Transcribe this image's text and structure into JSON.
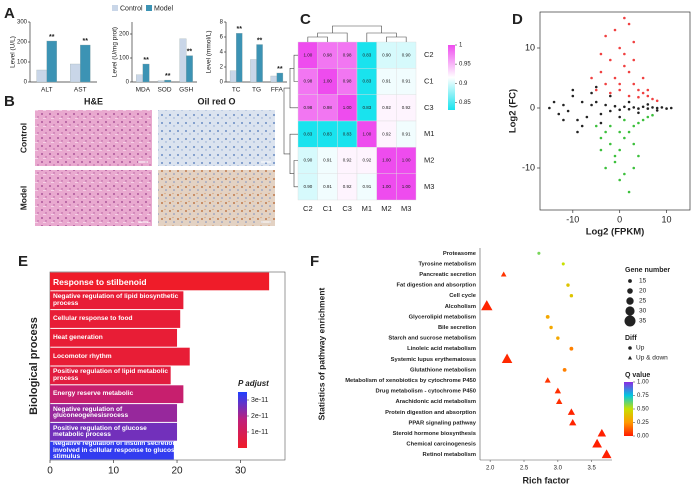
{
  "chart_data": [
    {
      "panel": "A",
      "type": "bar",
      "ylabel": "Level (U/L)",
      "categories": [
        "ALT",
        "AST"
      ],
      "series": [
        {
          "name": "Control",
          "color": "#c9d6e8",
          "values": [
            60,
            90
          ]
        },
        {
          "name": "Model",
          "color": "#3c93b4",
          "values": [
            205,
            185
          ]
        }
      ],
      "significance": [
        "**",
        "**"
      ],
      "ylim": [
        0,
        300
      ],
      "yticks": [
        0,
        100,
        200,
        300
      ]
    },
    {
      "type": "bar",
      "ylabel": "Level (U/mg prot)",
      "categories": [
        "MDA",
        "SOD",
        "GSH"
      ],
      "series": [
        {
          "color": "#c9d6e8",
          "values": [
            30,
            5,
            180
          ]
        },
        {
          "color": "#3c93b4",
          "values": [
            75,
            8,
            110
          ]
        }
      ],
      "significance": [
        "**",
        "**",
        "**"
      ],
      "ylim": [
        0,
        250
      ],
      "yticks": [
        0,
        100,
        200
      ]
    },
    {
      "type": "bar",
      "ylabel": "Level (mmol/L)",
      "categories": [
        "TC",
        "TG",
        "FFA"
      ],
      "series": [
        {
          "color": "#c9d6e8",
          "values": [
            1.5,
            3,
            0.8
          ]
        },
        {
          "color": "#3c93b4",
          "values": [
            6.5,
            5,
            1.2
          ]
        }
      ],
      "significance": [
        "**",
        "**",
        "**"
      ],
      "ylim": [
        0,
        8
      ],
      "yticks": [
        0,
        2,
        4,
        6,
        8
      ]
    },
    {
      "panel": "C",
      "type": "heatmap",
      "xcategories": [
        "C2",
        "C1",
        "C3",
        "M1",
        "M2",
        "M3"
      ],
      "ycategories": [
        "C2",
        "C1",
        "C3",
        "M1",
        "M2",
        "M3"
      ],
      "values": [
        [
          1,
          0.98,
          0.98,
          0.83,
          0.9,
          0.9
        ],
        [
          0.98,
          1,
          0.98,
          0.83,
          0.91,
          0.91
        ],
        [
          0.98,
          0.98,
          1,
          0.83,
          0.92,
          0.92
        ],
        [
          0.83,
          0.83,
          0.83,
          1,
          0.92,
          0.91
        ],
        [
          0.9,
          0.91,
          0.92,
          0.92,
          1,
          1
        ],
        [
          0.9,
          0.91,
          0.92,
          0.91,
          1,
          1
        ]
      ],
      "value_labels": [
        [
          "1.00",
          "0.98",
          "0.98",
          "0.83",
          "0.90",
          "0.90"
        ],
        [
          "0.98",
          "1.00",
          "0.98",
          "0.83",
          "0.91",
          "0.91"
        ],
        [
          "0.98",
          "0.98",
          "1.00",
          "0.83",
          "0.92",
          "0.92"
        ],
        [
          "0.83",
          "0.83",
          "0.83",
          "1.00",
          "0.92",
          "0.91"
        ],
        [
          "0.90",
          "0.91",
          "0.92",
          "0.92",
          "1.00",
          "1.00"
        ],
        [
          "0.90",
          "0.91",
          "0.92",
          "0.91",
          "1.00",
          "1.00"
        ]
      ],
      "zlim": [
        0.83,
        1
      ],
      "zticks": [
        1,
        0.95,
        0.9,
        0.85
      ],
      "colors": [
        "#19e3ee",
        "#ffffff",
        "#ee4cee"
      ]
    },
    {
      "panel": "D",
      "type": "scatter",
      "xlabel": "Log2 (FPKM)",
      "ylabel": "Log2 (FC)",
      "xlim": [
        -17,
        15
      ],
      "ylim": [
        -17,
        16
      ],
      "xticks": [
        -10,
        0,
        10
      ],
      "yticks": [
        -10,
        0,
        10
      ],
      "series": [
        {
          "color": "#222222",
          "x": [
            -15,
            -14,
            -13,
            -12,
            -11,
            -10,
            -9,
            -8,
            -7,
            -6,
            -5,
            -4,
            -3,
            -2,
            -1,
            0,
            1,
            2,
            3,
            4,
            5,
            6,
            7,
            8,
            9,
            10,
            11,
            -12,
            -10,
            -8,
            -6,
            -4,
            -2,
            0,
            2,
            4,
            6,
            8,
            -9,
            -5
          ],
          "values": [
            0,
            1,
            -1,
            0.5,
            -0.5,
            2,
            -2,
            1,
            -1.5,
            0.5,
            1,
            -1,
            0.5,
            -0.5,
            0.3,
            -0.3,
            0.2,
            -0.2,
            0.1,
            -0.1,
            0.2,
            -0.1,
            0.1,
            0,
            0.1,
            -0.1,
            0,
            -2,
            3,
            -3,
            2.5,
            -2.5,
            2,
            -1.5,
            1,
            -0.8,
            0.6,
            -0.4,
            -4,
            3.5
          ]
        },
        {
          "color": "#f04040",
          "x": [
            -6,
            -5,
            -4,
            -3,
            -2,
            -1,
            0,
            1,
            2,
            3,
            4,
            5,
            6,
            7,
            8,
            -3,
            -1,
            1,
            3,
            5,
            0,
            2,
            -2,
            4,
            1,
            3,
            6,
            -4,
            2,
            0
          ],
          "values": [
            5,
            3,
            6,
            4,
            8,
            5,
            10,
            7,
            6,
            4,
            3,
            2.5,
            2,
            1.5,
            1.2,
            12,
            13,
            9,
            11,
            5,
            3,
            2,
            2.5,
            1.8,
            15,
            8,
            3,
            9,
            14,
            4
          ]
        },
        {
          "color": "#3cc03c",
          "x": [
            -5,
            -4,
            -3,
            -2,
            -1,
            0,
            1,
            2,
            3,
            4,
            5,
            6,
            7,
            -3,
            -1,
            1,
            3,
            -2,
            0,
            2,
            4,
            1,
            -4,
            0,
            3
          ],
          "values": [
            -3,
            -5,
            -4,
            -6,
            -8,
            -7,
            -5,
            -4,
            -3,
            -2.5,
            -2,
            -1.5,
            -1.2,
            -10,
            -9,
            -11,
            -6,
            -3,
            -4,
            -14,
            -8,
            -2,
            -7,
            -12,
            -10
          ]
        }
      ]
    },
    {
      "panel": "E",
      "type": "barh",
      "ylabel": "Biological process",
      "categories": [
        "Response to stilbenoid",
        "Negative regulation of lipid biosynthetic process",
        "Cellular response to food",
        "Heat generation",
        "Locomotor rhythm",
        "Positive regulation of lipid metabolic process",
        "Energy reserve metabolic",
        "Negative regulation of gluconeogenesisrocess",
        "Positive regulation of glucose metabolic process",
        "Negative regulation of insulin secretion involved in cellular response to glucose stimulus"
      ],
      "values": [
        34.5,
        21,
        20.5,
        20,
        22,
        19,
        21,
        20,
        20,
        19.5
      ],
      "padj": [
        2e-13,
        3e-12,
        3e-12,
        3e-12,
        3e-12,
        5e-12,
        1.5e-11,
        2.2e-11,
        2.6e-11,
        3.3e-11
      ],
      "xlim": [
        0,
        37
      ],
      "xticks": [
        0,
        10,
        20,
        30
      ],
      "colorbar": {
        "title": "P adjust",
        "ticks": [
          3e-11,
          2e-11,
          1e-11
        ],
        "lim": [
          0,
          3.5e-11
        ],
        "colors": [
          "#f01c28",
          "#c0207a",
          "#2040ff"
        ]
      }
    },
    {
      "panel": "F",
      "type": "bubble",
      "ylabel": "Statistics of pathway enrichment",
      "xlabel": "Rich factor",
      "categories": [
        "Proteasome",
        "Tyrosine metabolism",
        "Pancreatic secretion",
        "Fat digestion and absorption",
        "Cell cycle",
        "Alcoholism",
        "Glycerolipid metabolism",
        "Bile secretion",
        "Starch and sucrose metabolism",
        "Linoleic acid metabolism",
        "Systemic lupus erythematosus",
        "Glutathione metabolism",
        "Metabolism of xenobiotics by cytochrome P450",
        "Drug metabolism - cytochrome P450",
        "Arachidonic acid metabolism",
        "Protein digestion and absorption",
        "PPAR signaling pathway",
        "Steroid hormone biosynthesis",
        "Chemical carcinogenesis",
        "Retinol metabolism"
      ],
      "values": [
        2.72,
        3.08,
        2.2,
        3.15,
        3.2,
        1.95,
        2.85,
        2.9,
        3.0,
        3.2,
        2.25,
        3.1,
        2.85,
        3.0,
        3.02,
        3.2,
        3.22,
        3.65,
        3.58,
        3.72
      ],
      "sizes": [
        13,
        13,
        18,
        14,
        14,
        32,
        15,
        14,
        14,
        15,
        30,
        15,
        19,
        20,
        20,
        22,
        22,
        25,
        28,
        28
      ],
      "qvalues": [
        0.6,
        0.5,
        0.05,
        0.4,
        0.4,
        0.02,
        0.3,
        0.3,
        0.3,
        0.2,
        0.03,
        0.2,
        0.05,
        0.04,
        0.04,
        0.02,
        0.02,
        0.01,
        0.01,
        0.01
      ],
      "diff": [
        "Up",
        "Up",
        "Up & down",
        "Up",
        "Up",
        "Up & down",
        "Up",
        "Up",
        "Up",
        "Up",
        "Up & down",
        "Up",
        "Up & down",
        "Up & down",
        "Up & down",
        "Up & down",
        "Up & down",
        "Up & down",
        "Up & down",
        "Up & down"
      ],
      "xlim": [
        1.85,
        3.8
      ],
      "xticks": [
        {
          "value": 2,
          "label": "2.0"
        },
        {
          "value": 2.5,
          "label": "2.5"
        },
        {
          "value": 3,
          "label": "3.0"
        },
        {
          "value": 3.5,
          "label": "3.5"
        }
      ],
      "size_legend": {
        "title": "Gene number",
        "values": [
          15,
          20,
          25,
          30,
          35
        ]
      },
      "shape_legend": {
        "title": "Diff",
        "labels": [
          "Up",
          "Up & down"
        ]
      },
      "color_legend": {
        "title": "Q value",
        "lim": [
          0,
          1
        ],
        "colors": [
          "#ff1a00",
          "#ff9a00",
          "#c8e000",
          "#00c8e0",
          "#8a2be2"
        ],
        "ticks": [
          {
            "value": 1,
            "label": "1.00"
          },
          {
            "value": 0.75,
            "label": "0.75"
          },
          {
            "value": 0.5,
            "label": "0.50"
          },
          {
            "value": 0.25,
            "label": "0.25"
          },
          {
            "value": 0,
            "label": "0.00"
          }
        ]
      }
    }
  ],
  "images": {
    "panel": "B",
    "columns": [
      "H&E",
      "Oil red O"
    ],
    "rows": [
      "Control",
      "Model"
    ]
  }
}
